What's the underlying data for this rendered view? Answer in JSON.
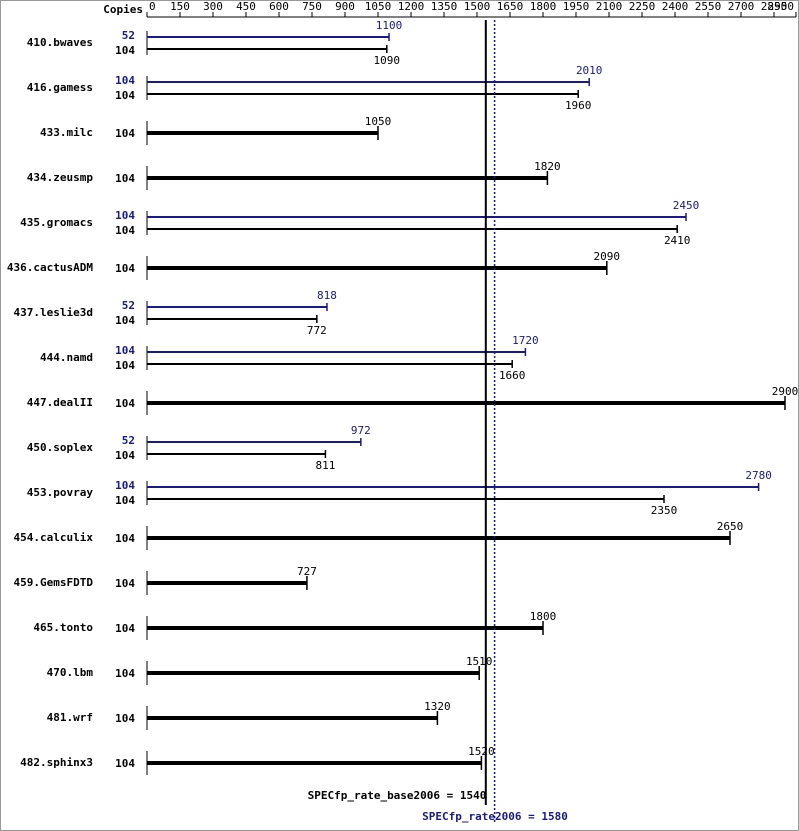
{
  "chart_data": {
    "type": "bar",
    "copies_header": "Copies",
    "xlim": [
      0,
      2950
    ],
    "xticks": [
      0,
      150,
      300,
      450,
      600,
      750,
      900,
      1050,
      1200,
      1350,
      1500,
      1650,
      1800,
      1950,
      2100,
      2250,
      2400,
      2550,
      2700,
      2850,
      2950
    ],
    "base_color": "#000000",
    "peak_color": "#191988",
    "rows": [
      {
        "name": "410.bwaves",
        "peak_copies": 52,
        "peak": 1100,
        "base_copies": 104,
        "base": 1090
      },
      {
        "name": "416.gamess",
        "peak_copies": 104,
        "peak": 2010,
        "base_copies": 104,
        "base": 1960
      },
      {
        "name": "433.milc",
        "base_copies": 104,
        "base": 1050
      },
      {
        "name": "434.zeusmp",
        "base_copies": 104,
        "base": 1820
      },
      {
        "name": "435.gromacs",
        "peak_copies": 104,
        "peak": 2450,
        "base_copies": 104,
        "base": 2410
      },
      {
        "name": "436.cactusADM",
        "base_copies": 104,
        "base": 2090
      },
      {
        "name": "437.leslie3d",
        "peak_copies": 52,
        "peak": 818,
        "base_copies": 104,
        "base": 772
      },
      {
        "name": "444.namd",
        "peak_copies": 104,
        "peak": 1720,
        "base_copies": 104,
        "base": 1660
      },
      {
        "name": "447.dealII",
        "base_copies": 104,
        "base": 2900
      },
      {
        "name": "450.soplex",
        "peak_copies": 52,
        "peak": 972,
        "base_copies": 104,
        "base": 811
      },
      {
        "name": "453.povray",
        "peak_copies": 104,
        "peak": 2780,
        "base_copies": 104,
        "base": 2350
      },
      {
        "name": "454.calculix",
        "base_copies": 104,
        "base": 2650
      },
      {
        "name": "459.GemsFDTD",
        "base_copies": 104,
        "base": 727
      },
      {
        "name": "465.tonto",
        "base_copies": 104,
        "base": 1800
      },
      {
        "name": "470.lbm",
        "base_copies": 104,
        "base": 1510
      },
      {
        "name": "481.wrf",
        "base_copies": 104,
        "base": 1320
      },
      {
        "name": "482.sphinx3",
        "base_copies": 104,
        "base": 1520
      }
    ],
    "base_summary": {
      "label": "SPECfp_rate_base2006 = 1540",
      "value": 1540
    },
    "peak_summary": {
      "label": "SPECfp_rate2006 = 1580",
      "value": 1580
    }
  }
}
